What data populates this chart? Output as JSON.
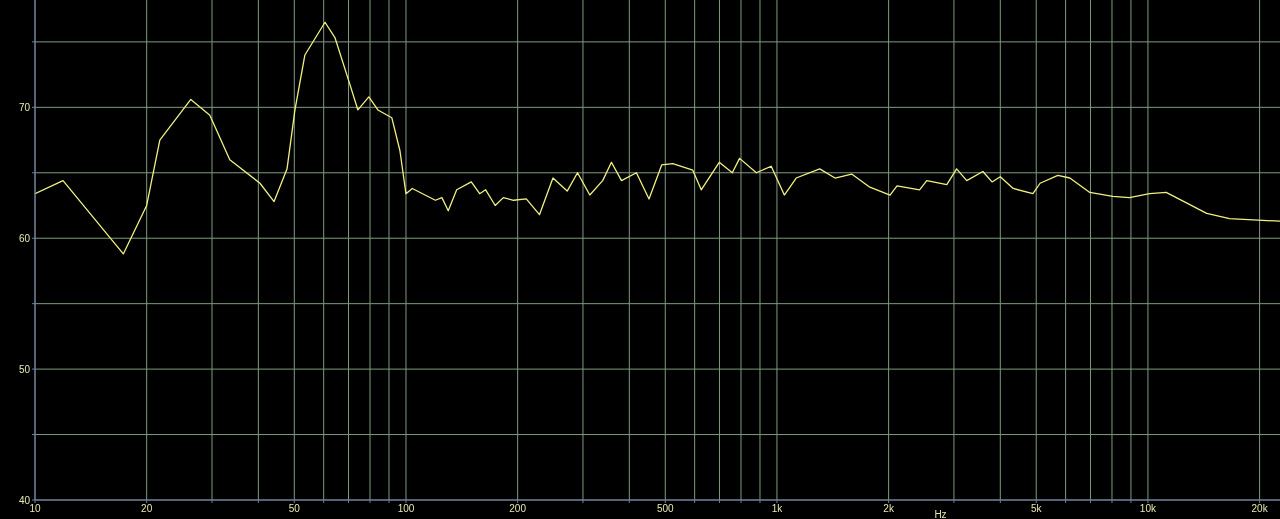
{
  "chart_data": {
    "type": "line",
    "xlabel": "Hz",
    "log": "x",
    "grid": true,
    "xlim": [
      10,
      22700
    ],
    "ylim": [
      40,
      78.2
    ],
    "xticks": [
      10,
      20,
      {
        "value": 30,
        "label": null
      },
      {
        "value": 40,
        "label": null
      },
      50,
      {
        "value": 60,
        "label": null
      },
      {
        "value": 70,
        "label": null
      },
      {
        "value": 80,
        "label": null
      },
      {
        "value": 90,
        "label": null
      },
      100,
      200,
      {
        "value": 300,
        "label": null
      },
      {
        "value": 400,
        "label": null
      },
      500,
      {
        "value": 600,
        "label": null
      },
      {
        "value": 700,
        "label": null
      },
      {
        "value": 800,
        "label": null
      },
      {
        "value": 900,
        "label": null
      },
      {
        "value": 1000,
        "label": "1k"
      },
      {
        "value": 2000,
        "label": "2k"
      },
      {
        "value": 3000,
        "label": null
      },
      {
        "value": 4000,
        "label": null
      },
      {
        "value": 5000,
        "label": "5k"
      },
      {
        "value": 6000,
        "label": null
      },
      {
        "value": 7000,
        "label": null
      },
      {
        "value": 8000,
        "label": null
      },
      {
        "value": 9000,
        "label": null
      },
      {
        "value": 10000,
        "label": "10k"
      },
      {
        "value": 20000,
        "label": "20k"
      }
    ],
    "yticks": [
      40,
      {
        "value": 45,
        "label": null
      },
      50,
      {
        "value": 55,
        "label": null
      },
      60,
      {
        "value": 65,
        "label": null
      },
      70,
      {
        "value": 75,
        "label": null
      }
    ],
    "series": [
      {
        "color": "#f0f080",
        "x": [
          10,
          11.9,
          17.3,
          20,
          21.7,
          26.3,
          29.6,
          33.5,
          40.4,
          44.1,
          47.8,
          50.2,
          53.4,
          60.5,
          64.4,
          70.7,
          74.2,
          79.4,
          84,
          91.6,
          96.3,
          100,
          104,
          120,
          125,
          130,
          137,
          150,
          158,
          164,
          174,
          183,
          195,
          211,
          229,
          249,
          272,
          290,
          313,
          339,
          358,
          381,
          418,
          452,
          489,
          524,
          593,
          625,
          699,
          758,
          793,
          880,
          965,
          1047,
          1127,
          1304,
          1434,
          1590,
          1780,
          2018,
          2107,
          2424,
          2534,
          2870,
          3050,
          3248,
          3590,
          3800,
          4000,
          4333,
          4898,
          5120,
          5718,
          6160,
          6973,
          8040,
          8913,
          10100,
          11200,
          12700,
          14400,
          16600,
          22700
        ],
        "values": [
          63.4,
          64.4,
          58.8,
          62.5,
          67.5,
          70.6,
          69.4,
          66,
          64.2,
          62.8,
          65.3,
          69.8,
          74,
          76.5,
          75.3,
          71.7,
          69.8,
          70.8,
          69.8,
          69.2,
          66.7,
          63.4,
          63.8,
          62.9,
          63.1,
          62.1,
          63.7,
          64.3,
          63.4,
          63.7,
          62.5,
          63.1,
          62.9,
          63,
          61.8,
          64.6,
          63.6,
          65,
          63.3,
          64.4,
          65.8,
          64.4,
          65,
          63,
          65.6,
          65.7,
          65.2,
          63.7,
          65.8,
          65,
          66.1,
          65,
          65.5,
          63.3,
          64.6,
          65.3,
          64.6,
          64.9,
          63.9,
          63.3,
          64,
          63.7,
          64.4,
          64.1,
          65.3,
          64.4,
          65.1,
          64.3,
          64.7,
          63.8,
          63.4,
          64.2,
          64.8,
          64.6,
          63.5,
          63.2,
          63.1,
          63.4,
          63.5,
          62.7,
          61.9,
          61.5,
          61.3
        ]
      }
    ]
  }
}
